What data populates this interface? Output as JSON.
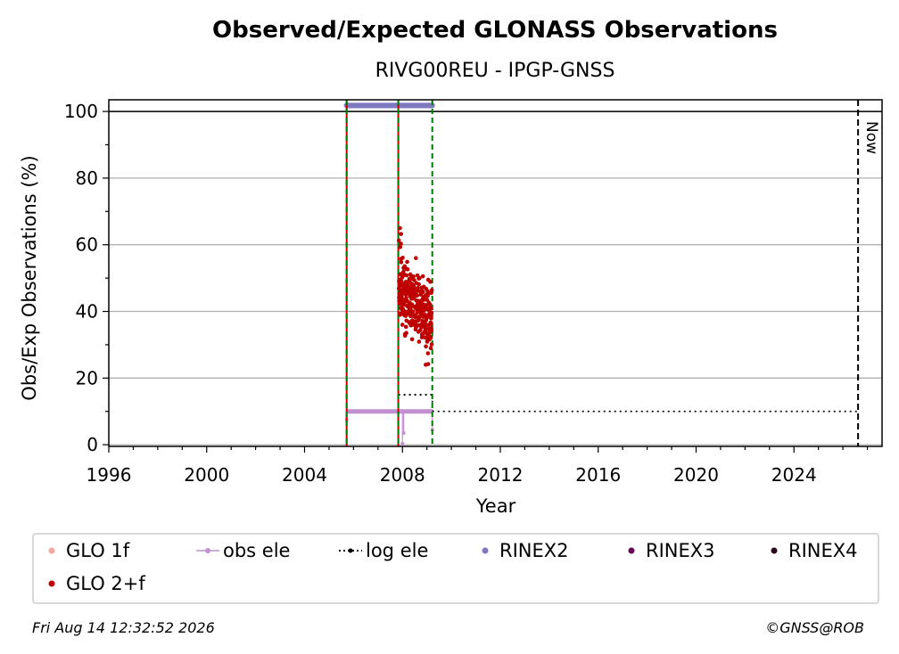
{
  "chart_data": {
    "type": "scatter",
    "title": "Observed/Expected GLONASS Observations",
    "subtitle": "RIVG00REU - IPGP-GNSS",
    "xlabel": "Year",
    "ylabel": "Obs/Exp Observations (%)",
    "xlim": [
      1996,
      2027.6
    ],
    "ylim": [
      -0.5,
      103.5
    ],
    "xticks": [
      1996,
      2000,
      2004,
      2008,
      2012,
      2016,
      2020,
      2024
    ],
    "yticks": [
      0,
      20,
      40,
      60,
      80,
      100
    ],
    "grid": "y",
    "reference_line_y": 100,
    "now": {
      "x": 2026.62,
      "label": "Now"
    },
    "vlines_red": [
      2005.72,
      2007.83
    ],
    "vlines_green": [
      2005.72,
      2007.83,
      2009.22
    ],
    "log_ele": {
      "segments": [
        [
          2005.72,
          2007.83,
          10
        ],
        [
          2007.83,
          2009.22,
          15
        ]
      ],
      "extension": [
        2009.22,
        2026.62,
        10
      ]
    },
    "obs_ele": {
      "segments": [
        [
          2005.72,
          2009.22,
          10
        ]
      ],
      "dips": [
        [
          2005.72,
          7.5
        ],
        [
          2008.0,
          0.3
        ],
        [
          2008.05,
          3.5
        ],
        [
          2009.22,
          4.5
        ]
      ]
    },
    "rinex2": {
      "range": [
        2005.72,
        2009.22
      ],
      "y": 101.8
    },
    "glo_2f_summary": {
      "x_range": [
        2007.83,
        2009.22
      ],
      "y_range": [
        23.5,
        65
      ],
      "center_start": 46,
      "center_end": 38
    },
    "legend": {
      "placement": "bottom",
      "items": [
        {
          "label": "GLO 1f",
          "color": "#f4a6a0",
          "marker": "dot"
        },
        {
          "label": "obs ele",
          "color": "#c28fd0",
          "marker": "line-dot"
        },
        {
          "label": "log ele",
          "color": "#000000",
          "marker": "dotted-line"
        },
        {
          "label": "RINEX2",
          "color": "#7f79c0",
          "marker": "dot"
        },
        {
          "label": "RINEX3",
          "color": "#6b0058",
          "marker": "dot"
        },
        {
          "label": "RINEX4",
          "color": "#2a0a1e",
          "marker": "dot"
        },
        {
          "label": "GLO 2+f",
          "color": "#bf0000",
          "marker": "dot"
        }
      ]
    }
  },
  "footer": {
    "timestamp": "Fri Aug 14 12:32:52 2026",
    "credit": "©GNSS@ROB"
  },
  "colors": {
    "glo2f": "#bf0000",
    "obs_ele": "#c28fd0",
    "rinex2": "#7f79c0",
    "red_line": "#cc0000",
    "green_line": "#007a00",
    "grid": "#b0b0b0"
  }
}
